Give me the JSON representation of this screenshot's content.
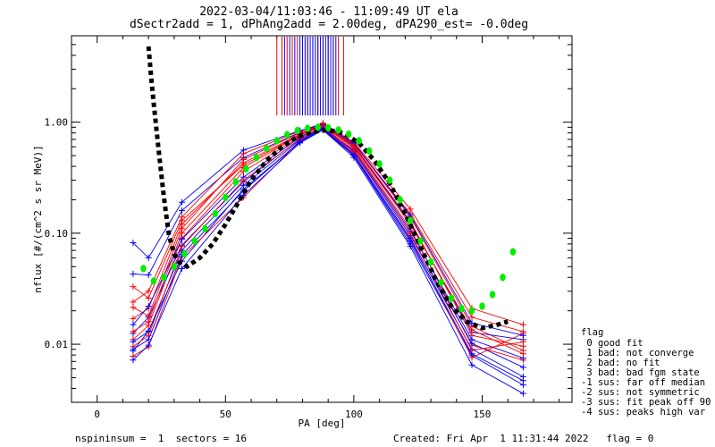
{
  "header": {
    "line1": "2022-03-04/11:03:46 - 11:09:49 UT ela",
    "line2": "dSectr2add = 1, dPhAng2add = 2.00deg, dPA290_est=  -0.0deg"
  },
  "footer": {
    "left": "nspininsum =  1  sectors = 16",
    "right": "Created: Fri Apr  1 11:31:44 2022   flag = 0"
  },
  "legend": {
    "title": "flag",
    "items": [
      " 0 good fit",
      " 1 bad: not converge",
      " 2 bad: no fit",
      " 3 bad: bad fgm state",
      "-1 sus: far off median",
      "-2 sus: not symmetric",
      "-3 sus: fit peak off 90",
      "-4 sus: peaks high var"
    ]
  },
  "colors": {
    "red": "#ff0000",
    "blue": "#0000ff",
    "green": "#00ee00",
    "black": "#000000"
  },
  "chart_data": {
    "type": "scatter",
    "xlabel": "PA [deg]",
    "ylabel": "nflux [#/(cm^2 s sr MeV)]",
    "xlim": [
      -10,
      185
    ],
    "ylim": [
      0.003,
      6.0
    ],
    "yscale": "log",
    "xticks": [
      0,
      50,
      100,
      150
    ],
    "xtick_labels": [
      "0",
      "50",
      "100",
      "150"
    ],
    "yticks": [
      0.01,
      0.1,
      1.0
    ],
    "ytick_labels": [
      "0.01",
      "0.10",
      "1.00"
    ],
    "pa_columns": [
      14,
      20,
      33,
      57,
      79,
      88,
      100,
      122,
      146,
      166
    ],
    "series": [
      {
        "color": "red",
        "values": [
          0.011,
          0.0148,
          0.09,
          0.36,
          0.74,
          0.94,
          0.58,
          0.11,
          0.0098,
          0.0072
        ]
      },
      {
        "color": "blue",
        "values": [
          0.0087,
          0.0132,
          0.056,
          0.25,
          0.66,
          0.86,
          0.5,
          0.08,
          0.0079,
          0.0043
        ]
      },
      {
        "color": "red",
        "values": [
          0.017,
          0.021,
          0.12,
          0.43,
          0.78,
          0.96,
          0.64,
          0.14,
          0.0145,
          0.0088
        ]
      },
      {
        "color": "blue",
        "values": [
          0.0125,
          0.0175,
          0.078,
          0.29,
          0.71,
          0.89,
          0.54,
          0.095,
          0.0102,
          0.0062
        ]
      },
      {
        "color": "red",
        "values": [
          0.0078,
          0.0095,
          0.061,
          0.21,
          0.68,
          0.9,
          0.52,
          0.088,
          0.0076,
          0.0125
        ]
      },
      {
        "color": "blue",
        "values": [
          0.043,
          0.042,
          0.16,
          0.48,
          0.81,
          0.93,
          0.61,
          0.125,
          0.0128,
          0.011
        ]
      },
      {
        "color": "red",
        "values": [
          0.024,
          0.03,
          0.14,
          0.52,
          0.83,
          0.98,
          0.66,
          0.165,
          0.021,
          0.015
        ]
      },
      {
        "color": "blue",
        "values": [
          0.0105,
          0.013,
          0.07,
          0.27,
          0.69,
          0.88,
          0.51,
          0.09,
          0.009,
          0.0051
        ]
      },
      {
        "color": "red",
        "values": [
          0.013,
          0.016,
          0.1,
          0.39,
          0.76,
          0.95,
          0.62,
          0.128,
          0.012,
          0.0096
        ]
      },
      {
        "color": "blue",
        "values": [
          0.0072,
          0.0098,
          0.048,
          0.22,
          0.65,
          0.85,
          0.48,
          0.076,
          0.0065,
          0.0036
        ]
      },
      {
        "color": "red",
        "values": [
          0.0215,
          0.018,
          0.11,
          0.46,
          0.8,
          0.97,
          0.63,
          0.15,
          0.0175,
          0.013
        ]
      },
      {
        "color": "blue",
        "values": [
          0.015,
          0.022,
          0.088,
          0.32,
          0.73,
          0.9,
          0.56,
          0.105,
          0.011,
          0.0075
        ]
      },
      {
        "color": "red",
        "values": [
          0.0095,
          0.012,
          0.076,
          0.3,
          0.7,
          0.92,
          0.55,
          0.1,
          0.0088,
          0.0105
        ]
      },
      {
        "color": "blue",
        "values": [
          0.082,
          0.06,
          0.19,
          0.56,
          0.84,
          0.95,
          0.65,
          0.145,
          0.0155,
          0.012
        ]
      },
      {
        "color": "red",
        "values": [
          0.033,
          0.026,
          0.13,
          0.41,
          0.77,
          0.93,
          0.6,
          0.12,
          0.0135,
          0.0082
        ]
      },
      {
        "color": "blue",
        "values": [
          0.009,
          0.011,
          0.064,
          0.24,
          0.67,
          0.87,
          0.5,
          0.085,
          0.0082,
          0.0047
        ]
      }
    ],
    "fit_green": {
      "x": [
        18,
        22,
        26,
        30,
        34,
        38,
        42,
        46,
        50,
        54,
        58,
        62,
        66,
        70,
        74,
        78,
        82,
        86,
        90,
        94,
        98,
        102,
        106,
        110,
        114,
        118,
        122,
        126,
        130,
        134,
        138,
        142,
        146,
        150,
        154,
        158,
        162
      ],
      "y": [
        0.048,
        0.037,
        0.04,
        0.05,
        0.065,
        0.085,
        0.11,
        0.15,
        0.21,
        0.29,
        0.38,
        0.48,
        0.58,
        0.68,
        0.77,
        0.84,
        0.88,
        0.9,
        0.89,
        0.85,
        0.78,
        0.68,
        0.55,
        0.42,
        0.3,
        0.2,
        0.13,
        0.085,
        0.055,
        0.036,
        0.026,
        0.021,
        0.02,
        0.022,
        0.028,
        0.04,
        0.068
      ]
    },
    "fit_black": {
      "x": [
        20,
        21,
        22,
        23,
        24,
        25,
        26,
        27,
        28,
        30,
        32,
        35,
        40,
        45,
        50,
        55,
        60,
        66,
        72,
        78,
        84,
        90,
        96,
        102,
        108,
        114,
        120,
        126,
        132,
        138,
        144,
        150,
        156,
        160
      ],
      "y": [
        4.8,
        2.6,
        1.5,
        0.9,
        0.55,
        0.34,
        0.21,
        0.14,
        0.095,
        0.065,
        0.055,
        0.05,
        0.06,
        0.08,
        0.12,
        0.19,
        0.3,
        0.45,
        0.6,
        0.74,
        0.82,
        0.85,
        0.8,
        0.65,
        0.45,
        0.28,
        0.15,
        0.075,
        0.038,
        0.022,
        0.016,
        0.014,
        0.015,
        0.016
      ]
    },
    "vertical_marks": {
      "red": [
        70,
        72,
        74,
        76,
        78,
        80,
        82,
        84,
        86,
        88,
        90,
        92,
        94,
        96
      ],
      "blue": [
        73,
        75,
        77,
        79,
        80,
        81,
        82,
        83,
        84,
        85,
        86,
        87,
        88,
        89,
        90,
        91,
        92,
        93
      ],
      "y_bottom": 1.15
    }
  }
}
